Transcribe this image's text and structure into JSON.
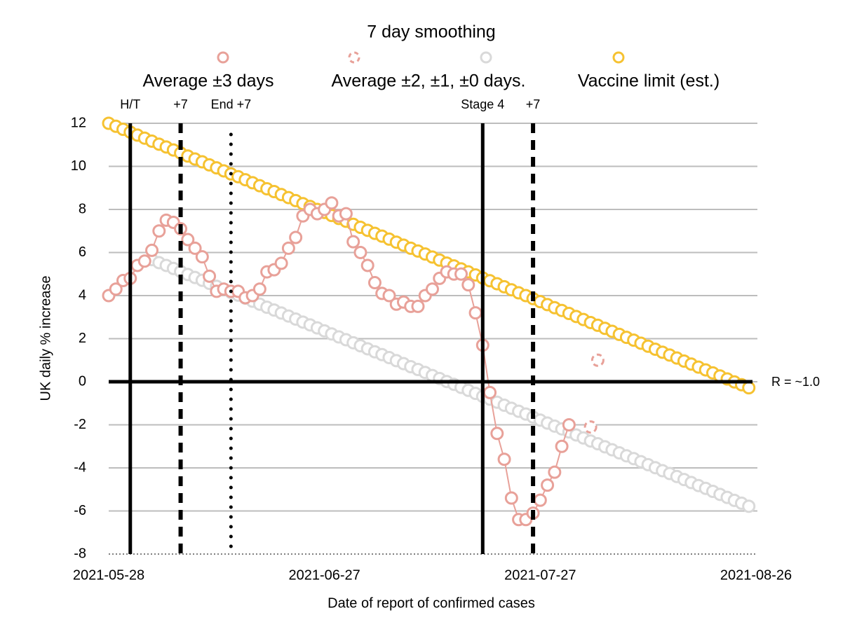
{
  "chart_data": {
    "type": "line",
    "legend_title": "7 day smoothing",
    "xlabel": "Date of report of confirmed cases",
    "ylabel": "UK daily % increase",
    "xlim": [
      "2021-05-28",
      "2021-08-26"
    ],
    "xticks": [
      "2021-05-28",
      "2021-06-27",
      "2021-07-27",
      "2021-08-26"
    ],
    "ylim": [
      -8,
      12
    ],
    "yticks": [
      -8,
      -6,
      -4,
      -2,
      0,
      2,
      4,
      6,
      8,
      10,
      12
    ],
    "grid": true,
    "x": [
      "2021-05-28",
      "2021-05-29",
      "2021-05-30",
      "2021-05-31",
      "2021-06-01",
      "2021-06-02",
      "2021-06-03",
      "2021-06-04",
      "2021-06-05",
      "2021-06-06",
      "2021-06-07",
      "2021-06-08",
      "2021-06-09",
      "2021-06-10",
      "2021-06-11",
      "2021-06-12",
      "2021-06-13",
      "2021-06-14",
      "2021-06-15",
      "2021-06-16",
      "2021-06-17",
      "2021-06-18",
      "2021-06-19",
      "2021-06-20",
      "2021-06-21",
      "2021-06-22",
      "2021-06-23",
      "2021-06-24",
      "2021-06-25",
      "2021-06-26",
      "2021-06-27",
      "2021-06-28",
      "2021-06-29",
      "2021-06-30",
      "2021-07-01",
      "2021-07-02",
      "2021-07-03",
      "2021-07-04",
      "2021-07-05",
      "2021-07-06",
      "2021-07-07",
      "2021-07-08",
      "2021-07-09",
      "2021-07-10",
      "2021-07-11",
      "2021-07-12",
      "2021-07-13",
      "2021-07-14",
      "2021-07-15",
      "2021-07-16",
      "2021-07-17",
      "2021-07-18",
      "2021-07-19",
      "2021-07-20",
      "2021-07-21",
      "2021-07-22",
      "2021-07-23",
      "2021-07-24",
      "2021-07-25",
      "2021-07-26",
      "2021-07-27",
      "2021-07-28",
      "2021-07-29",
      "2021-07-30",
      "2021-07-31",
      "2021-08-01",
      "2021-08-02",
      "2021-08-03",
      "2021-08-04",
      "2021-08-05",
      "2021-08-06",
      "2021-08-07",
      "2021-08-08",
      "2021-08-09",
      "2021-08-10",
      "2021-08-11",
      "2021-08-12",
      "2021-08-13",
      "2021-08-14",
      "2021-08-15",
      "2021-08-16",
      "2021-08-17",
      "2021-08-18",
      "2021-08-19",
      "2021-08-20",
      "2021-08-21",
      "2021-08-22",
      "2021-08-23",
      "2021-08-24",
      "2021-08-25"
    ],
    "series": [
      {
        "name": "Average ±3 days",
        "color": "#e8a199",
        "connected": true,
        "dashed": false,
        "values": [
          4.0,
          4.3,
          4.7,
          4.8,
          5.4,
          5.6,
          6.1,
          7.0,
          7.5,
          7.4,
          7.1,
          6.6,
          6.2,
          5.8,
          4.9,
          4.2,
          4.3,
          4.2,
          4.2,
          3.9,
          4.0,
          4.3,
          5.1,
          5.2,
          5.5,
          6.2,
          6.7,
          7.7,
          8.0,
          7.8,
          8.0,
          8.3,
          7.7,
          7.8,
          6.5,
          6.0,
          5.4,
          4.6,
          4.1,
          4.0,
          3.6,
          3.7,
          3.5,
          3.5,
          4.0,
          4.3,
          4.8,
          5.1,
          5.0,
          5.0,
          4.5,
          3.2,
          1.7,
          -0.5,
          -2.4,
          -3.6,
          -5.4,
          -6.4,
          -6.4,
          -6.1,
          -5.5,
          -4.8,
          -4.2,
          -3.0,
          -2.0,
          null,
          null,
          null,
          null,
          null,
          null,
          null,
          null,
          null,
          null,
          null,
          null,
          null,
          null,
          null,
          null,
          null,
          null,
          null,
          null,
          null,
          null,
          null,
          null,
          null
        ]
      },
      {
        "name": "Average ±2, ±1, ±0 days.",
        "color": "#e8a199",
        "connected": false,
        "dashed": true,
        "values": [
          null,
          null,
          null,
          null,
          null,
          null,
          null,
          null,
          null,
          null,
          null,
          null,
          null,
          null,
          null,
          null,
          null,
          null,
          null,
          null,
          null,
          null,
          null,
          null,
          null,
          null,
          null,
          null,
          null,
          null,
          null,
          null,
          null,
          null,
          null,
          null,
          null,
          null,
          null,
          null,
          null,
          null,
          null,
          null,
          null,
          null,
          null,
          null,
          null,
          null,
          null,
          null,
          null,
          null,
          null,
          null,
          null,
          null,
          null,
          null,
          null,
          null,
          null,
          null,
          null,
          null,
          null,
          -2.1,
          1.0,
          null,
          null,
          null,
          null,
          null,
          null,
          null,
          null,
          null,
          null,
          null,
          null,
          null,
          null,
          null,
          null,
          null,
          null,
          null,
          null,
          null
        ]
      },
      {
        "color": "#d9d9d9",
        "connected": false,
        "dashed": false,
        "values": [
          null,
          null,
          null,
          null,
          null,
          null,
          5.67,
          5.53,
          5.4,
          5.26,
          5.12,
          4.98,
          4.84,
          4.71,
          4.57,
          4.43,
          4.29,
          4.15,
          4.02,
          3.88,
          3.74,
          3.6,
          3.46,
          3.33,
          3.19,
          3.05,
          2.91,
          2.77,
          2.64,
          2.5,
          2.36,
          2.22,
          2.08,
          1.95,
          1.81,
          1.67,
          1.53,
          1.39,
          1.26,
          1.12,
          0.98,
          0.84,
          0.7,
          0.57,
          0.43,
          0.29,
          0.15,
          0.01,
          -0.12,
          -0.26,
          -0.4,
          -0.54,
          -0.68,
          -0.81,
          -0.95,
          -1.09,
          -1.23,
          -1.37,
          -1.5,
          -1.64,
          -1.78,
          -1.92,
          -2.06,
          -2.19,
          -2.33,
          -2.47,
          -2.61,
          -2.75,
          -2.88,
          -3.02,
          -3.16,
          -3.3,
          -3.44,
          -3.57,
          -3.71,
          -3.85,
          -3.99,
          -4.13,
          -4.26,
          -4.4,
          -4.54,
          -4.68,
          -4.82,
          -4.95,
          -5.09,
          -5.23,
          -5.37,
          -5.51,
          -5.64,
          -5.78
        ]
      },
      {
        "name": "Vaccine limit (est.)",
        "color": "#f6c231",
        "connected": false,
        "dashed": false,
        "values": [
          12.0,
          11.86,
          11.72,
          11.59,
          11.45,
          11.31,
          11.17,
          11.03,
          10.9,
          10.76,
          10.62,
          10.48,
          10.34,
          10.21,
          10.07,
          9.93,
          9.79,
          9.65,
          9.52,
          9.38,
          9.24,
          9.1,
          8.96,
          8.83,
          8.69,
          8.55,
          8.41,
          8.27,
          8.14,
          8.0,
          7.86,
          7.72,
          7.58,
          7.45,
          7.31,
          7.17,
          7.03,
          6.89,
          6.76,
          6.62,
          6.48,
          6.34,
          6.2,
          6.07,
          5.93,
          5.79,
          5.65,
          5.51,
          5.38,
          5.24,
          5.1,
          4.96,
          4.82,
          4.69,
          4.55,
          4.41,
          4.27,
          4.13,
          4.0,
          3.86,
          3.72,
          3.58,
          3.44,
          3.31,
          3.17,
          3.03,
          2.89,
          2.75,
          2.62,
          2.48,
          2.34,
          2.2,
          2.06,
          1.93,
          1.79,
          1.65,
          1.51,
          1.37,
          1.24,
          1.1,
          0.96,
          0.82,
          0.68,
          0.55,
          0.41,
          0.27,
          0.13,
          -0.01,
          -0.14,
          -0.28
        ]
      }
    ],
    "vlines": [
      {
        "text": "H/T",
        "x": "2021-05-31",
        "style": "solid"
      },
      {
        "text": "+7",
        "x": "2021-06-07",
        "style": "dashed"
      },
      {
        "text": "End +7",
        "x": "2021-06-14",
        "style": "dotted"
      },
      {
        "text": "Stage 4",
        "x": "2021-07-19",
        "style": "solid"
      },
      {
        "text": "+7",
        "x": "2021-07-26",
        "style": "dashed"
      }
    ],
    "hlines": [
      {
        "text": "R = ~1.0",
        "y": 0
      }
    ]
  }
}
